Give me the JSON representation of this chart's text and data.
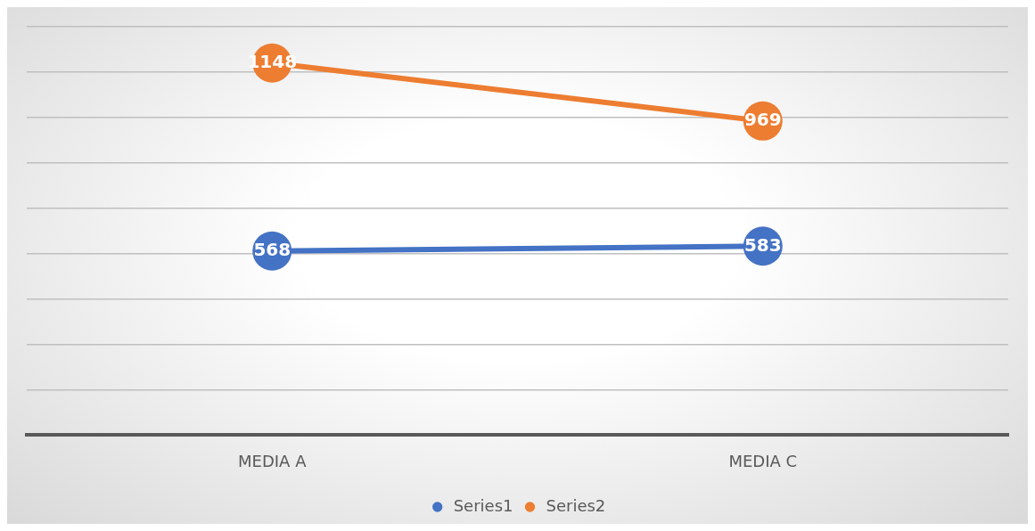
{
  "chart_data": {
    "type": "line",
    "categories": [
      "MEDIA A",
      "MEDIA C"
    ],
    "series": [
      {
        "name": "Series1",
        "color": "#4472c4",
        "values": [
          568,
          583
        ]
      },
      {
        "name": "Series2",
        "color": "#ed7d31",
        "values": [
          1148,
          969
        ]
      }
    ],
    "ylim": [
      0,
      1260
    ],
    "yticks": [
      {
        "value": 0,
        "label": null
      },
      {
        "value": 140,
        "label": null
      },
      {
        "value": 280,
        "label": null
      },
      {
        "value": 420,
        "label": null
      },
      {
        "value": 560,
        "label": null
      },
      {
        "value": 700,
        "label": null
      },
      {
        "value": 840,
        "label": null
      },
      {
        "value": 980,
        "label": null
      },
      {
        "value": 1120,
        "label": null
      },
      {
        "value": 1260,
        "label": null
      }
    ],
    "tick_labels": "x",
    "grid": "y",
    "legend": "bottom",
    "marker": "circle",
    "line_style": "solid",
    "data_labels": true
  }
}
